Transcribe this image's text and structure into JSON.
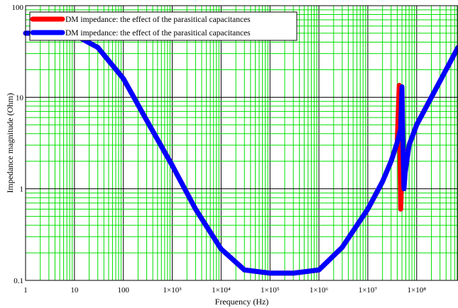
{
  "chart_data": {
    "type": "line",
    "title": "",
    "xlabel": "Frequency (Hz)",
    "ylabel": "Impedance magnitude (Ohm)",
    "x_scale": "log",
    "y_scale": "log",
    "xlim": [
      1,
      700000000
    ],
    "ylim": [
      0.1,
      100
    ],
    "grid": true,
    "legend_placement": "top-left",
    "x_ticks": [
      {
        "value": 1,
        "label": "1"
      },
      {
        "value": 10,
        "label": "10"
      },
      {
        "value": 100,
        "label": "100"
      },
      {
        "value": 1000,
        "label": "1×10³"
      },
      {
        "value": 10000,
        "label": "1×10⁴"
      },
      {
        "value": 100000,
        "label": "1×10⁵"
      },
      {
        "value": 1000000,
        "label": "1×10⁶"
      },
      {
        "value": 10000000,
        "label": "1×10⁷"
      },
      {
        "value": 100000000,
        "label": "1×10⁸"
      }
    ],
    "y_ticks": [
      {
        "value": 0.1,
        "label": "0.1"
      },
      {
        "value": 1,
        "label": "1"
      },
      {
        "value": 10,
        "label": "10"
      },
      {
        "value": 100,
        "label": "100"
      }
    ],
    "colors": {
      "grid_minor": "#00e000",
      "grid_major": "#000000",
      "series_red": "#ff0000",
      "series_blue": "#0000ff"
    },
    "series": [
      {
        "name": "DM impedance: the effect of the parasitical capacitances",
        "color": "#ff0000",
        "points": [
          [
            1,
            50
          ],
          [
            3,
            50
          ],
          [
            10,
            48
          ],
          [
            30,
            35
          ],
          [
            100,
            16
          ],
          [
            300,
            5.6
          ],
          [
            1000,
            1.8
          ],
          [
            3000,
            0.6
          ],
          [
            10000,
            0.22
          ],
          [
            30000,
            0.13
          ],
          [
            100000,
            0.12
          ],
          [
            300000,
            0.12
          ],
          [
            1000000,
            0.13
          ],
          [
            3000000,
            0.23
          ],
          [
            10000000,
            0.6
          ],
          [
            20000000,
            1.2
          ],
          [
            30000000,
            2.0
          ],
          [
            40000000,
            3.2
          ],
          [
            44000000,
            13.5
          ],
          [
            45000000,
            4.5
          ],
          [
            47000000,
            0.6
          ],
          [
            49000000,
            1.2
          ],
          [
            55000000,
            1.6
          ],
          [
            70000000,
            3.0
          ],
          [
            100000000,
            5.0
          ],
          [
            200000000,
            10.0
          ],
          [
            400000000,
            20.0
          ],
          [
            700000000,
            35.0
          ]
        ]
      },
      {
        "name": "DM impedance: the effect of the parasitical capacitances",
        "color": "#0000ff",
        "points": [
          [
            1,
            50
          ],
          [
            3,
            50
          ],
          [
            10,
            48
          ],
          [
            30,
            35
          ],
          [
            100,
            16
          ],
          [
            300,
            5.6
          ],
          [
            1000,
            1.8
          ],
          [
            3000,
            0.6
          ],
          [
            10000,
            0.22
          ],
          [
            30000,
            0.13
          ],
          [
            100000,
            0.12
          ],
          [
            300000,
            0.12
          ],
          [
            1000000,
            0.13
          ],
          [
            3000000,
            0.23
          ],
          [
            10000000,
            0.6
          ],
          [
            20000000,
            1.2
          ],
          [
            30000000,
            2.0
          ],
          [
            40000000,
            3.2
          ],
          [
            47000000,
            4.5
          ],
          [
            50000000,
            13.0
          ],
          [
            52000000,
            4.0
          ],
          [
            55000000,
            1.0
          ],
          [
            58000000,
            1.5
          ],
          [
            70000000,
            3.0
          ],
          [
            100000000,
            5.0
          ],
          [
            200000000,
            10.0
          ],
          [
            400000000,
            20.0
          ],
          [
            700000000,
            35.0
          ]
        ]
      }
    ]
  }
}
